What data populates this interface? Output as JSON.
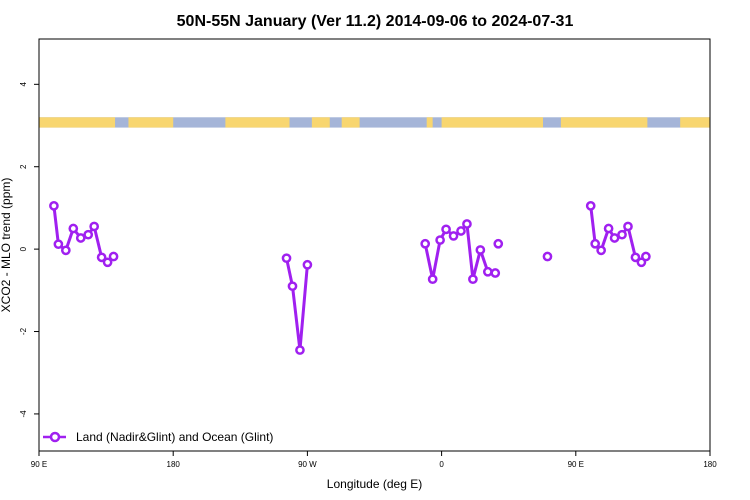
{
  "chart_data": {
    "type": "line",
    "title": "50N-55N January (Ver 11.2)   2014-09-06 to 2024-07-31",
    "xlabel": "Longitude (deg E)",
    "ylabel": "XCO2 - MLO trend (ppm)",
    "xlim": [
      90,
      540
    ],
    "ylim": [
      -4.9,
      5.1
    ],
    "x_ticks": [
      {
        "value": 90,
        "label": "90 E"
      },
      {
        "value": 180,
        "label": "180"
      },
      {
        "value": 270,
        "label": "90 W"
      },
      {
        "value": 360,
        "label": "0"
      },
      {
        "value": 450,
        "label": "90 E"
      },
      {
        "value": 540,
        "label": "180"
      }
    ],
    "y_ticks": [
      {
        "value": -4,
        "label": "-4"
      },
      {
        "value": -2,
        "label": "-2"
      },
      {
        "value": 0,
        "label": "0"
      },
      {
        "value": 2,
        "label": "2"
      },
      {
        "value": 4,
        "label": "4"
      }
    ],
    "series": [
      {
        "name": "Land (Nadir&Glint) and Ocean (Glint)",
        "color": "#a020f0",
        "segments": [
          {
            "x": [
              100,
              103,
              108,
              113,
              118,
              123,
              127,
              132,
              136
            ],
            "y": [
              1.05,
              0.12,
              -0.03,
              0.5,
              0.27,
              0.35,
              0.55,
              -0.2,
              -0.32
            ]
          },
          {
            "x": [
              140
            ],
            "y": [
              -0.18
            ]
          },
          {
            "x": [
              256,
              260,
              265,
              270
            ],
            "y": [
              -0.22,
              -0.9,
              -2.45,
              -0.38
            ]
          },
          {
            "x": [
              349,
              354,
              359,
              363,
              368,
              373,
              377,
              381,
              386,
              391,
              396
            ],
            "y": [
              0.13,
              -0.73,
              0.22,
              0.48,
              0.32,
              0.44,
              0.61,
              -0.73,
              -0.02,
              -0.55,
              -0.58
            ]
          },
          {
            "x": [
              398
            ],
            "y": [
              0.13
            ]
          },
          {
            "x": [
              431
            ],
            "y": [
              -0.18
            ]
          },
          {
            "x": [
              460,
              463,
              467,
              472,
              476,
              481,
              485,
              490,
              494
            ],
            "y": [
              1.05,
              0.13,
              -0.03,
              0.5,
              0.27,
              0.35,
              0.55,
              -0.2,
              -0.32
            ]
          },
          {
            "x": [
              497
            ],
            "y": [
              -0.18
            ]
          }
        ]
      }
    ],
    "land_ocean_band": {
      "y_range": [
        2.95,
        3.2
      ],
      "land_color": "#f8d670",
      "ocean_color": "#a5b5d8",
      "x_range": [
        90,
        540
      ],
      "land_ranges": [
        [
          90,
          141
        ],
        [
          150,
          180
        ],
        [
          215,
          258
        ],
        [
          273,
          285
        ],
        [
          293,
          305
        ],
        [
          350,
          354
        ],
        [
          360,
          428
        ],
        [
          440,
          498
        ],
        [
          520,
          540
        ]
      ]
    },
    "grid": false,
    "legend": {
      "position": "bottom-left"
    }
  }
}
